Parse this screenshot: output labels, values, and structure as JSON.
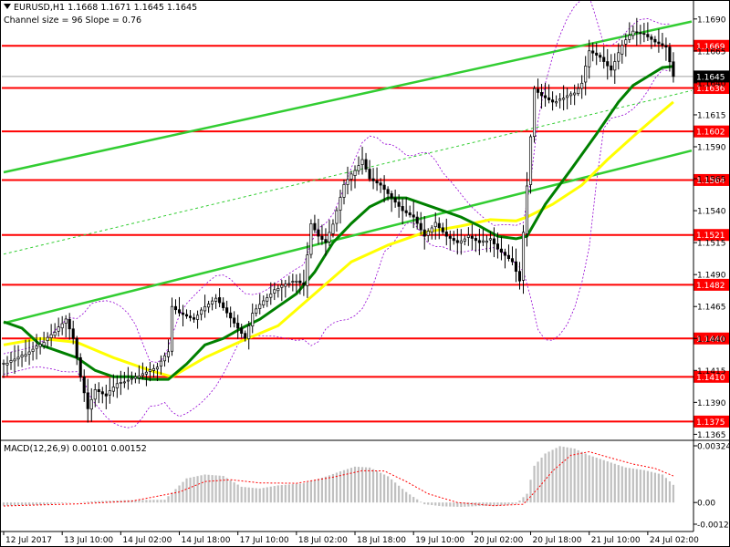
{
  "header": {
    "symbol": "EURUSD,H1",
    "ohlc": "1.1668 1.1671 1.1645 1.1645",
    "channel": "Channel size = 96 Slope = 0.76"
  },
  "macd": {
    "label": "MACD(12,26,9) 0.00101 0.00152",
    "ticks": [
      "0.00324",
      "0.00",
      "-0.00124"
    ]
  },
  "colors": {
    "background": "#ffffff",
    "candle": "#000000",
    "level": "#ff0000",
    "channel": "#32cd32",
    "ma_fast": "#008000",
    "ma_slow": "#ffff00",
    "bollinger": "#9400d3",
    "histogram": "#c0c0c0",
    "signal": "#ff0000",
    "label_text": "#ffffff"
  },
  "chart_data": {
    "type": "candlestick",
    "symbol": "EURUSD",
    "timeframe": "H1",
    "ylim": [
      1.1361,
      1.1702
    ],
    "price_ticks": [
      "1.1690",
      "1.1665",
      "1.1640",
      "1.1615",
      "1.1590",
      "1.1565",
      "1.1540",
      "1.1515",
      "1.1490",
      "1.1465",
      "1.1440",
      "1.1415",
      "1.1390",
      "1.1365"
    ],
    "levels": [
      "1.1669",
      "1.1636",
      "1.1602",
      "1.1564",
      "1.1521",
      "1.1482",
      "1.1440",
      "1.1410",
      "1.1375"
    ],
    "current_price": "1.1645",
    "x_labels": [
      "12 Jul 2017",
      "13 Jul 10:00",
      "14 Jul 02:00",
      "14 Jul 18:00",
      "17 Jul 10:00",
      "18 Jul 02:00",
      "18 Jul 18:00",
      "19 Jul 10:00",
      "20 Jul 02:00",
      "20 Jul 18:00",
      "21 Jul 10:00",
      "24 Jul 02:00"
    ],
    "close_path": [
      [
        0,
        1.142
      ],
      [
        6,
        1.1428
      ],
      [
        10,
        1.1435
      ],
      [
        14,
        1.1445
      ],
      [
        17,
        1.1455
      ],
      [
        19,
        1.144
      ],
      [
        21,
        1.141
      ],
      [
        23,
        1.1385
      ],
      [
        25,
        1.14
      ],
      [
        28,
        1.1395
      ],
      [
        31,
        1.1405
      ],
      [
        35,
        1.1408
      ],
      [
        38,
        1.1412
      ],
      [
        42,
        1.1418
      ],
      [
        45,
        1.143
      ],
      [
        46,
        1.1465
      ],
      [
        48,
        1.146
      ],
      [
        52,
        1.1455
      ],
      [
        55,
        1.1465
      ],
      [
        58,
        1.1472
      ],
      [
        61,
        1.146
      ],
      [
        64,
        1.1448
      ],
      [
        66,
        1.144
      ],
      [
        68,
        1.146
      ],
      [
        71,
        1.147
      ],
      [
        74,
        1.1478
      ],
      [
        77,
        1.1483
      ],
      [
        80,
        1.1485
      ],
      [
        82,
        1.1482
      ],
      [
        84,
        1.153
      ],
      [
        86,
        1.152
      ],
      [
        88,
        1.1515
      ],
      [
        90,
        1.153
      ],
      [
        93,
        1.156
      ],
      [
        96,
        1.1572
      ],
      [
        98,
        1.158
      ],
      [
        100,
        1.1565
      ],
      [
        103,
        1.156
      ],
      [
        106,
        1.155
      ],
      [
        109,
        1.154
      ],
      [
        112,
        1.1535
      ],
      [
        115,
        1.152
      ],
      [
        118,
        1.153
      ],
      [
        121,
        1.152
      ],
      [
        124,
        1.1515
      ],
      [
        127,
        1.152
      ],
      [
        130,
        1.1515
      ],
      [
        133,
        1.1518
      ],
      [
        135,
        1.151
      ],
      [
        137,
        1.1505
      ],
      [
        139,
        1.15
      ],
      [
        141,
        1.1485
      ],
      [
        143,
        1.156
      ],
      [
        145,
        1.1635
      ],
      [
        147,
        1.163
      ],
      [
        150,
        1.1625
      ],
      [
        153,
        1.1628
      ],
      [
        156,
        1.1632
      ],
      [
        158,
        1.164
      ],
      [
        160,
        1.1665
      ],
      [
        163,
        1.166
      ],
      [
        166,
        1.165
      ],
      [
        169,
        1.167
      ],
      [
        172,
        1.168
      ],
      [
        175,
        1.1678
      ],
      [
        178,
        1.1672
      ],
      [
        181,
        1.1668
      ],
      [
        183,
        1.1645
      ]
    ],
    "ma_fast_path": [
      [
        0,
        1.1453
      ],
      [
        5,
        1.1448
      ],
      [
        10,
        1.1435
      ],
      [
        15,
        1.143
      ],
      [
        20,
        1.1425
      ],
      [
        25,
        1.1415
      ],
      [
        30,
        1.141
      ],
      [
        35,
        1.141
      ],
      [
        40,
        1.1408
      ],
      [
        45,
        1.1408
      ],
      [
        50,
        1.142
      ],
      [
        55,
        1.1435
      ],
      [
        60,
        1.144
      ],
      [
        65,
        1.1448
      ],
      [
        70,
        1.1455
      ],
      [
        75,
        1.1465
      ],
      [
        80,
        1.1475
      ],
      [
        85,
        1.1492
      ],
      [
        90,
        1.1515
      ],
      [
        95,
        1.153
      ],
      [
        100,
        1.1543
      ],
      [
        105,
        1.155
      ],
      [
        110,
        1.155
      ],
      [
        115,
        1.1545
      ],
      [
        120,
        1.154
      ],
      [
        125,
        1.1535
      ],
      [
        130,
        1.1528
      ],
      [
        135,
        1.152
      ],
      [
        140,
        1.1518
      ],
      [
        143,
        1.152
      ],
      [
        148,
        1.1545
      ],
      [
        155,
        1.1572
      ],
      [
        162,
        1.16
      ],
      [
        168,
        1.1625
      ],
      [
        172,
        1.1638
      ],
      [
        176,
        1.1645
      ],
      [
        180,
        1.1652
      ],
      [
        183,
        1.1653
      ]
    ],
    "ma_slow_path": [
      [
        0,
        1.1435
      ],
      [
        10,
        1.144
      ],
      [
        20,
        1.1437
      ],
      [
        30,
        1.1425
      ],
      [
        40,
        1.1415
      ],
      [
        46,
        1.141
      ],
      [
        55,
        1.1425
      ],
      [
        65,
        1.1438
      ],
      [
        75,
        1.145
      ],
      [
        85,
        1.1475
      ],
      [
        95,
        1.15
      ],
      [
        105,
        1.1513
      ],
      [
        115,
        1.1523
      ],
      [
        125,
        1.1528
      ],
      [
        133,
        1.1533
      ],
      [
        140,
        1.1532
      ],
      [
        143,
        1.1535
      ],
      [
        150,
        1.1545
      ],
      [
        158,
        1.156
      ],
      [
        165,
        1.158
      ],
      [
        172,
        1.1598
      ],
      [
        178,
        1.1613
      ],
      [
        183,
        1.1625
      ]
    ],
    "channel_upper": [
      [
        0,
        1.157
      ],
      [
        188,
        1.1688
      ]
    ],
    "channel_lower": [
      [
        0,
        1.1452
      ],
      [
        188,
        1.1587
      ]
    ],
    "channel_mid": [
      [
        0,
        1.1506
      ],
      [
        188,
        1.1634
      ]
    ],
    "macd_hist_env": [
      [
        0,
        -0.00018
      ],
      [
        6,
        -0.00016
      ],
      [
        10,
        -0.00014
      ],
      [
        15,
        -5e-05
      ],
      [
        20,
        0.0
      ],
      [
        25,
        8e-05
      ],
      [
        35,
        0.00014
      ],
      [
        44,
        0.00016
      ],
      [
        50,
        0.00138
      ],
      [
        55,
        0.0016
      ],
      [
        60,
        0.00152
      ],
      [
        65,
        0.0009
      ],
      [
        70,
        0.0008
      ],
      [
        75,
        0.00098
      ],
      [
        82,
        0.0011
      ],
      [
        88,
        0.00148
      ],
      [
        92,
        0.00178
      ],
      [
        96,
        0.00205
      ],
      [
        100,
        0.002
      ],
      [
        105,
        0.0015
      ],
      [
        110,
        0.0006
      ],
      [
        115,
        -0.0001
      ],
      [
        120,
        -0.00022
      ],
      [
        125,
        -0.00025
      ],
      [
        130,
        -0.0002
      ],
      [
        135,
        -0.00018
      ],
      [
        140,
        -8e-05
      ],
      [
        143,
        0.0005
      ],
      [
        145,
        0.0021
      ],
      [
        148,
        0.0028
      ],
      [
        152,
        0.00322
      ],
      [
        156,
        0.00308
      ],
      [
        160,
        0.0027
      ],
      [
        165,
        0.00235
      ],
      [
        170,
        0.002
      ],
      [
        175,
        0.00185
      ],
      [
        180,
        0.0016
      ],
      [
        183,
        0.00101
      ]
    ],
    "macd_signal_path": [
      [
        0,
        -0.0002
      ],
      [
        20,
        -8e-05
      ],
      [
        35,
        8e-05
      ],
      [
        48,
        0.0006
      ],
      [
        55,
        0.0012
      ],
      [
        62,
        0.0013
      ],
      [
        70,
        0.00112
      ],
      [
        80,
        0.0011
      ],
      [
        90,
        0.00145
      ],
      [
        98,
        0.00182
      ],
      [
        104,
        0.0018
      ],
      [
        110,
        0.0012
      ],
      [
        116,
        0.0005
      ],
      [
        124,
        0.0
      ],
      [
        134,
        -0.00018
      ],
      [
        142,
        -0.0001
      ],
      [
        146,
        0.0008
      ],
      [
        150,
        0.0018
      ],
      [
        155,
        0.0027
      ],
      [
        160,
        0.0029
      ],
      [
        165,
        0.0026
      ],
      [
        172,
        0.0022
      ],
      [
        178,
        0.00195
      ],
      [
        183,
        0.00152
      ]
    ],
    "macd_ylim": [
      -0.00124,
      0.00324
    ]
  }
}
